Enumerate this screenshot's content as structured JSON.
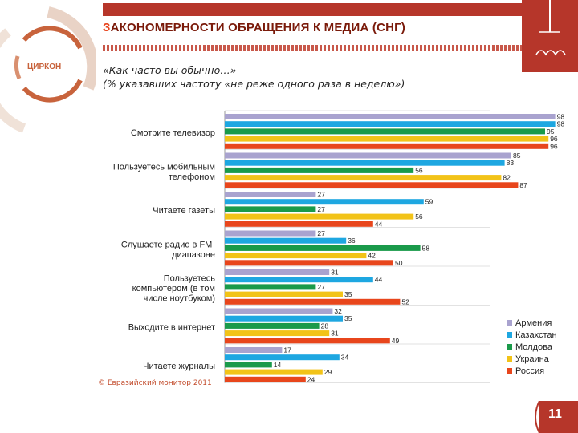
{
  "header": {
    "title_first": "З",
    "title_rest": "АКОНОМЕРНОСТИ ОБРАЩЕНИЯ К МЕДИА (СНГ)",
    "logo_text": "ЦИРКОН"
  },
  "question": {
    "line1": "«Как часто вы обычно…»",
    "line2": "(% указавших частоту «не реже одного раза в неделю»)"
  },
  "chart_data": {
    "type": "bar",
    "orientation": "horizontal",
    "categories": [
      [
        "Смотрите телевизор"
      ],
      [
        "Пользуетесь мобильным",
        "телефоном"
      ],
      [
        "Читаете газеты"
      ],
      [
        "Слушаете радио в FM-",
        "диапазоне"
      ],
      [
        "Пользуетесь",
        "компьютером (в том",
        "числе ноутбуком)"
      ],
      [
        "Выходите в интернет"
      ],
      [
        "Читаете журналы"
      ]
    ],
    "series": [
      {
        "name": "Армения",
        "color": "#a9a3cf",
        "values": [
          98,
          85,
          27,
          27,
          31,
          32,
          17
        ]
      },
      {
        "name": "Казахстан",
        "color": "#1ea7e1",
        "values": [
          98,
          83,
          59,
          36,
          44,
          35,
          34
        ]
      },
      {
        "name": "Молдова",
        "color": "#1a9a4a",
        "values": [
          95,
          56,
          27,
          58,
          27,
          28,
          14
        ]
      },
      {
        "name": "Украина",
        "color": "#f2c318",
        "values": [
          96,
          82,
          56,
          42,
          35,
          31,
          29
        ]
      },
      {
        "name": "Россия",
        "color": "#e8461c",
        "values": [
          96,
          87,
          44,
          50,
          52,
          49,
          24
        ]
      }
    ],
    "xlim": [
      0,
      100
    ],
    "legend_position": "bottom-right",
    "data_labels": true
  },
  "footer": {
    "copyright": "© Евразийский монитор 2011",
    "page_number": "11"
  }
}
